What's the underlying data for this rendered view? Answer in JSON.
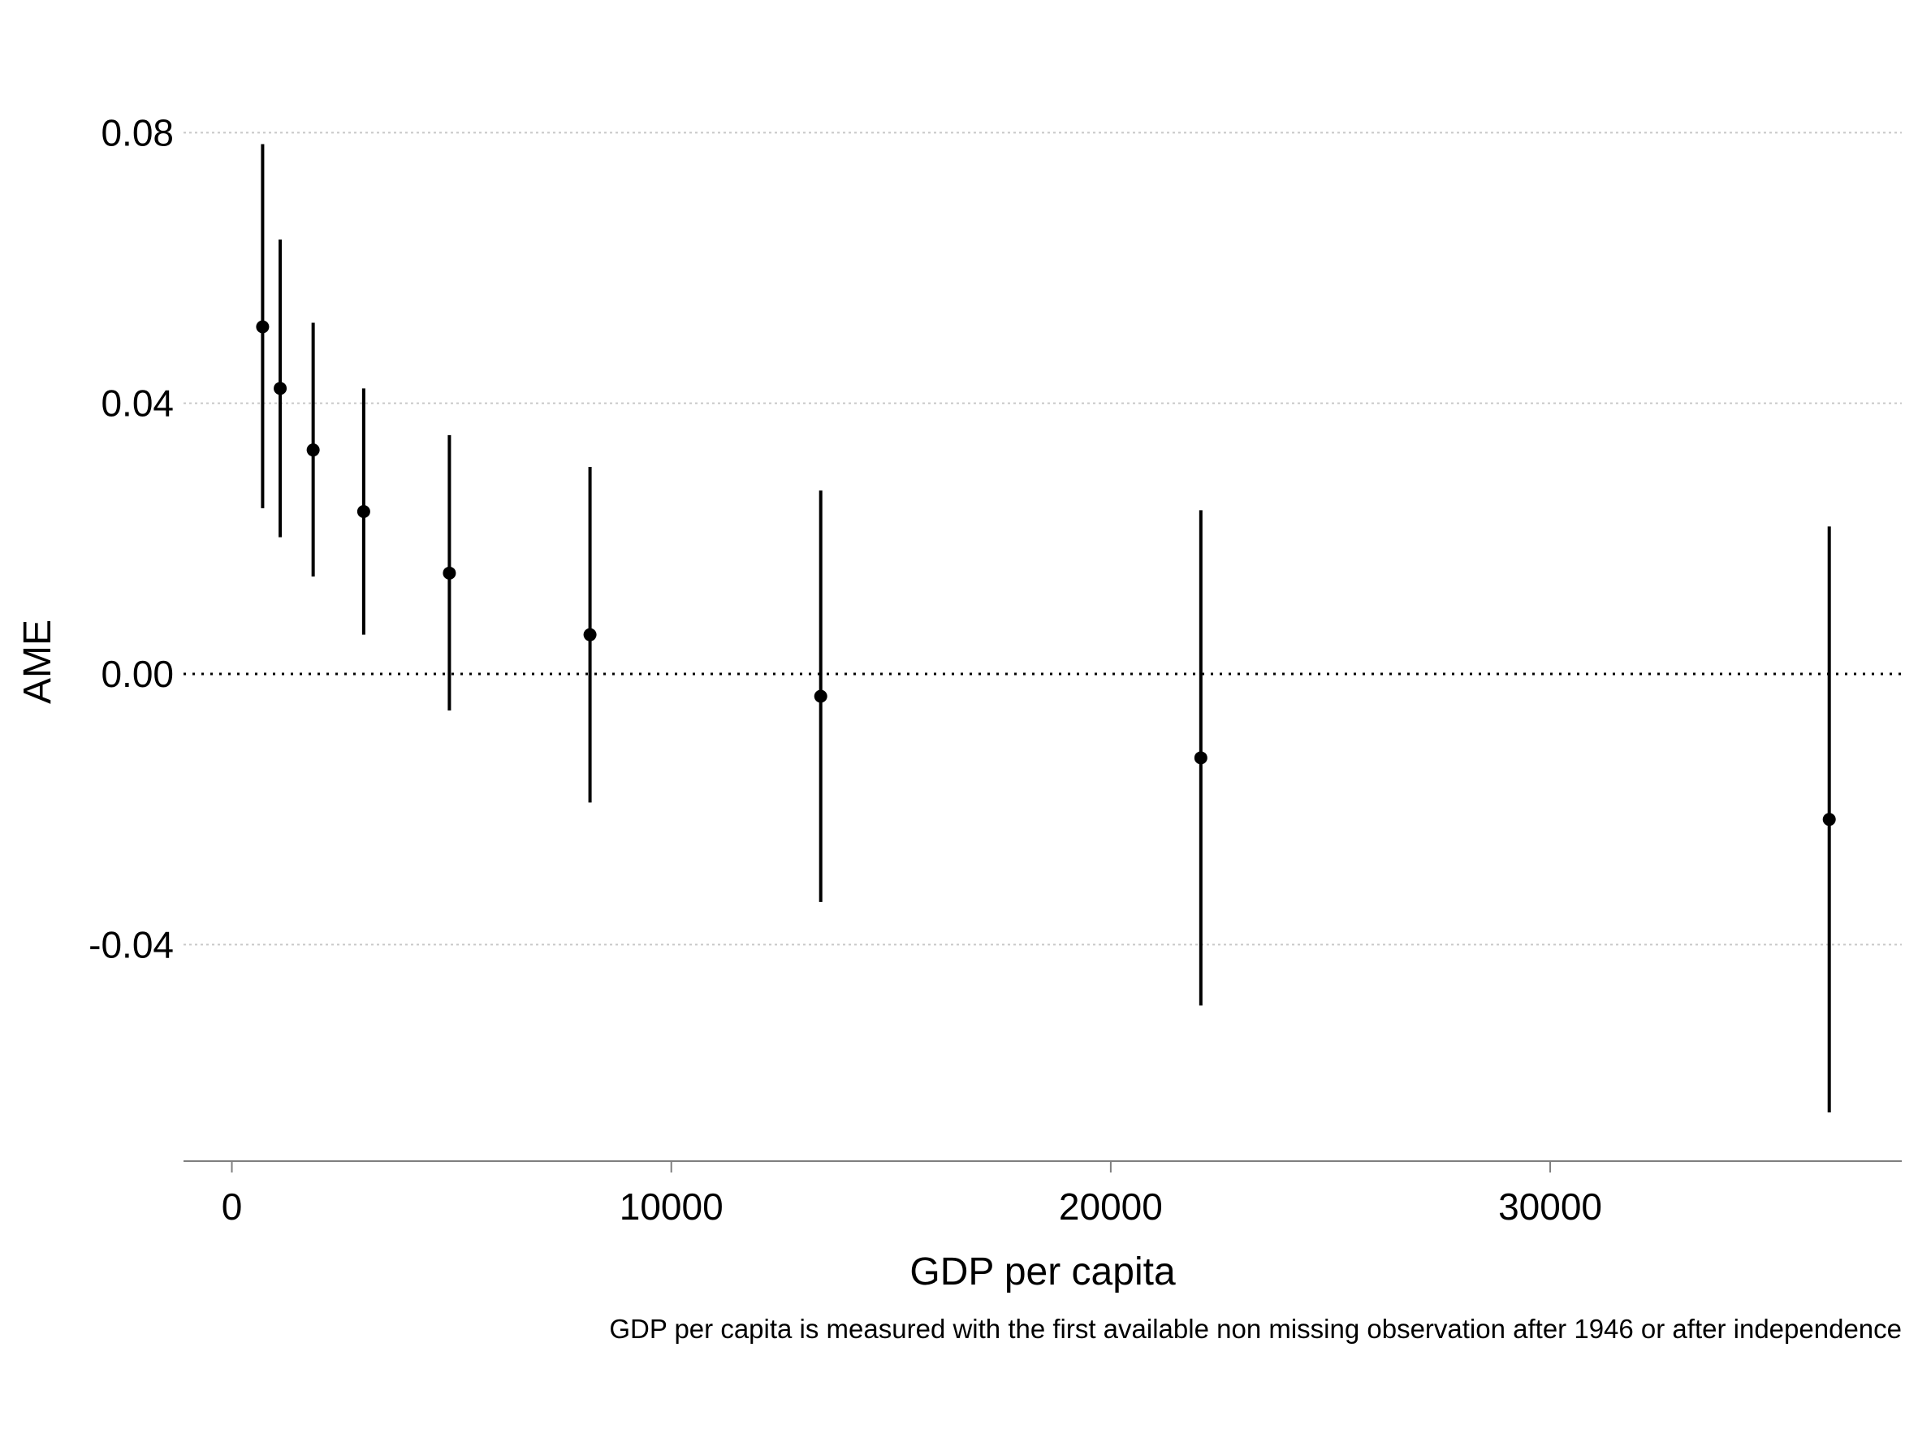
{
  "chart_data": {
    "type": "scatter",
    "title": "",
    "xlabel": "GDP per capita",
    "ylabel": "AME",
    "note": "GDP per capita is measured with the first available non missing observation after 1946 or after independence",
    "xlim": [
      -1100,
      38000
    ],
    "ylim": [
      -0.072,
      0.09
    ],
    "xticks": [
      0,
      10000,
      20000,
      30000
    ],
    "xtick_labels": [
      "0",
      "10000",
      "20000",
      "30000"
    ],
    "yticks": [
      0.08,
      0.04,
      0.0,
      -0.04
    ],
    "ytick_labels": [
      "0.08",
      "0.04",
      "0.00",
      "-0.04"
    ],
    "grid": "horizontal dotted",
    "reference_line": 0,
    "series": [
      {
        "points": [
          {
            "x": 700,
            "y": 0.0513,
            "lo": 0.0245,
            "hi": 0.0783
          },
          {
            "x": 1100,
            "y": 0.0422,
            "lo": 0.0202,
            "hi": 0.0642
          },
          {
            "x": 1850,
            "y": 0.0331,
            "lo": 0.0144,
            "hi": 0.0519
          },
          {
            "x": 3000,
            "y": 0.024,
            "lo": 0.0058,
            "hi": 0.0422
          },
          {
            "x": 4950,
            "y": 0.0149,
            "lo": -0.0054,
            "hi": 0.0353
          },
          {
            "x": 8150,
            "y": 0.0058,
            "lo": -0.019,
            "hi": 0.0306
          },
          {
            "x": 13400,
            "y": -0.0033,
            "lo": -0.0337,
            "hi": 0.0271
          },
          {
            "x": 22050,
            "y": -0.0124,
            "lo": -0.049,
            "hi": 0.0242
          },
          {
            "x": 36350,
            "y": -0.0215,
            "lo": -0.0648,
            "hi": 0.0218
          }
        ]
      }
    ],
    "colors": {
      "marker": "#000000",
      "grid": "#c8c8c8",
      "axis": "#7f7f7f"
    }
  }
}
